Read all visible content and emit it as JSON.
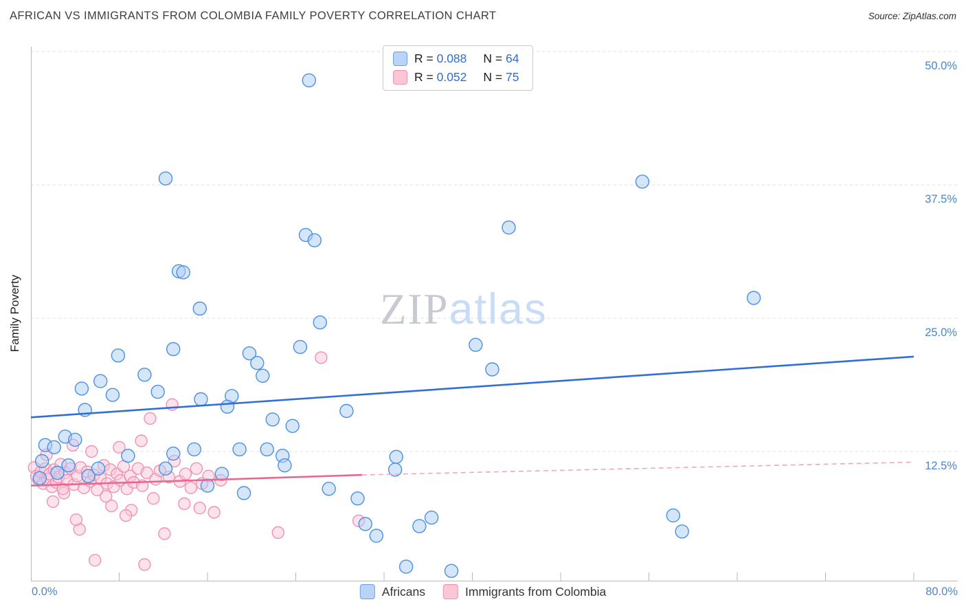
{
  "title": "AFRICAN VS IMMIGRANTS FROM COLOMBIA FAMILY POVERTY CORRELATION CHART",
  "source": "Source: ZipAtlas.com",
  "watermark": {
    "zip": "ZIP",
    "atlas": "atlas"
  },
  "legend_box": {
    "r_label": "R = ",
    "n_label": "N = ",
    "series": [
      {
        "r": "0.088",
        "n": "64"
      },
      {
        "r": "0.052",
        "n": "75"
      }
    ]
  },
  "bottom_legend": [
    {
      "label": "Africans"
    },
    {
      "label": "Immigrants from Colombia"
    }
  ],
  "axes": {
    "y_label": "Family Poverty",
    "y_ticks": [
      "50.0%",
      "37.5%",
      "25.0%",
      "12.5%"
    ],
    "x_min_label": "0.0%",
    "x_max_label": "80.0%"
  },
  "colors": {
    "accent_blue_text": "#4a86c8",
    "legend_value_blue": "#2b6fd4",
    "africans_stroke": "#4a90e2",
    "africans_fill": "#aecdf5",
    "colombia_stroke": "#f191b2",
    "colombia_fill": "#f9c6d7",
    "trend_blue": "#2f6fd6",
    "trend_pink": "#e9688f",
    "trend_pink_dashed": "#f0a6bb"
  },
  "chart_data": {
    "type": "scatter",
    "title": "AFRICAN VS IMMIGRANTS FROM COLOMBIA FAMILY POVERTY CORRELATION CHART",
    "xlabel": "",
    "ylabel": "Family Poverty",
    "xlim": [
      0,
      80
    ],
    "ylim": [
      0,
      52
    ],
    "x_unit": "%",
    "y_unit": "%",
    "gridlines": {
      "y_values": [
        12.5,
        25,
        37.5,
        50
      ],
      "style": "dashed"
    },
    "legend_position": "bottom-center",
    "series": [
      {
        "name": "Africans",
        "R": 0.088,
        "N": 64,
        "color": "#4a90e2",
        "fill": "#aecdf5",
        "points": [
          [
            25.2,
            47.3
          ],
          [
            12.2,
            38.1
          ],
          [
            55.4,
            37.8
          ],
          [
            43.3,
            33.5
          ],
          [
            24.9,
            32.8
          ],
          [
            25.7,
            32.3
          ],
          [
            13.4,
            29.4
          ],
          [
            13.8,
            29.3
          ],
          [
            65.5,
            26.9
          ],
          [
            15.3,
            25.9
          ],
          [
            26.2,
            24.6
          ],
          [
            40.3,
            22.5
          ],
          [
            24.4,
            22.3
          ],
          [
            12.9,
            22.1
          ],
          [
            7.9,
            21.5
          ],
          [
            19.8,
            21.7
          ],
          [
            20.5,
            20.8
          ],
          [
            41.8,
            20.2
          ],
          [
            10.3,
            19.7
          ],
          [
            21.0,
            19.6
          ],
          [
            6.3,
            19.1
          ],
          [
            4.6,
            18.4
          ],
          [
            11.5,
            18.1
          ],
          [
            7.4,
            17.8
          ],
          [
            18.2,
            17.7
          ],
          [
            15.4,
            17.4
          ],
          [
            17.8,
            16.7
          ],
          [
            4.9,
            16.4
          ],
          [
            28.6,
            16.3
          ],
          [
            21.9,
            15.5
          ],
          [
            23.7,
            14.9
          ],
          [
            3.1,
            13.9
          ],
          [
            4.0,
            13.6
          ],
          [
            1.3,
            13.1
          ],
          [
            2.1,
            12.9
          ],
          [
            14.8,
            12.7
          ],
          [
            18.9,
            12.7
          ],
          [
            21.4,
            12.7
          ],
          [
            12.9,
            12.3
          ],
          [
            22.8,
            12.1
          ],
          [
            8.8,
            12.1
          ],
          [
            33.1,
            12.0
          ],
          [
            23.0,
            11.2
          ],
          [
            1.0,
            11.6
          ],
          [
            3.4,
            11.2
          ],
          [
            6.1,
            10.9
          ],
          [
            12.2,
            10.9
          ],
          [
            17.3,
            10.4
          ],
          [
            2.4,
            10.5
          ],
          [
            5.2,
            10.2
          ],
          [
            0.8,
            10.0
          ],
          [
            16.0,
            9.3
          ],
          [
            19.3,
            8.6
          ],
          [
            29.6,
            8.1
          ],
          [
            27.0,
            9.0
          ],
          [
            30.3,
            5.7
          ],
          [
            31.3,
            4.6
          ],
          [
            35.2,
            5.5
          ],
          [
            34.0,
            1.7
          ],
          [
            38.1,
            1.3
          ],
          [
            58.2,
            6.5
          ],
          [
            59.0,
            5.0
          ],
          [
            33.0,
            10.8
          ],
          [
            36.3,
            6.3
          ]
        ]
      },
      {
        "name": "Immigrants from Colombia",
        "R": 0.052,
        "N": 75,
        "color": "#f191b2",
        "fill": "#f9c6d7",
        "points": [
          [
            26.3,
            21.3
          ],
          [
            12.8,
            16.9
          ],
          [
            10.8,
            15.6
          ],
          [
            16.6,
            6.8
          ],
          [
            22.4,
            4.9
          ],
          [
            29.7,
            6.0
          ],
          [
            5.8,
            2.3
          ],
          [
            10.3,
            1.9
          ],
          [
            4.4,
            5.2
          ],
          [
            12.1,
            4.8
          ],
          [
            10.0,
            13.5
          ],
          [
            8.0,
            12.9
          ],
          [
            5.5,
            12.5
          ],
          [
            3.8,
            13.1
          ],
          [
            1.4,
            12.2
          ],
          [
            7.3,
            7.4
          ],
          [
            4.1,
            6.1
          ],
          [
            9.1,
            7.0
          ],
          [
            2.0,
            7.8
          ],
          [
            13.9,
            7.6
          ],
          [
            6.8,
            8.3
          ],
          [
            3.0,
            8.6
          ],
          [
            11.1,
            8.1
          ],
          [
            8.6,
            6.5
          ],
          [
            15.3,
            7.2
          ],
          [
            0.3,
            11.0
          ],
          [
            0.5,
            10.2
          ],
          [
            0.7,
            9.8
          ],
          [
            0.9,
            10.6
          ],
          [
            1.1,
            9.5
          ],
          [
            1.3,
            10.9
          ],
          [
            1.5,
            9.9
          ],
          [
            1.7,
            10.4
          ],
          [
            1.9,
            9.2
          ],
          [
            2.1,
            10.8
          ],
          [
            2.3,
            9.6
          ],
          [
            2.5,
            10.1
          ],
          [
            2.7,
            11.3
          ],
          [
            2.9,
            9.0
          ],
          [
            3.1,
            10.5
          ],
          [
            3.3,
            9.8
          ],
          [
            3.6,
            10.9
          ],
          [
            3.9,
            9.4
          ],
          [
            4.2,
            10.2
          ],
          [
            4.5,
            11.0
          ],
          [
            4.8,
            9.1
          ],
          [
            5.1,
            10.6
          ],
          [
            5.4,
            9.7
          ],
          [
            5.7,
            10.3
          ],
          [
            6.0,
            8.9
          ],
          [
            6.3,
            10.0
          ],
          [
            6.6,
            11.2
          ],
          [
            6.9,
            9.5
          ],
          [
            7.2,
            10.8
          ],
          [
            7.5,
            9.2
          ],
          [
            7.8,
            10.4
          ],
          [
            8.1,
            9.8
          ],
          [
            8.4,
            11.1
          ],
          [
            8.7,
            9.0
          ],
          [
            9.0,
            10.2
          ],
          [
            9.3,
            9.6
          ],
          [
            9.7,
            10.9
          ],
          [
            10.1,
            9.3
          ],
          [
            10.5,
            10.5
          ],
          [
            11.3,
            9.9
          ],
          [
            11.7,
            10.7
          ],
          [
            12.5,
            10.1
          ],
          [
            13.0,
            11.6
          ],
          [
            13.5,
            9.7
          ],
          [
            14.0,
            10.4
          ],
          [
            14.5,
            9.1
          ],
          [
            15.0,
            10.9
          ],
          [
            15.5,
            9.5
          ],
          [
            16.1,
            10.2
          ],
          [
            17.2,
            9.8
          ]
        ]
      }
    ],
    "trend_lines": [
      {
        "series": "Africans",
        "style": "solid",
        "x1": 0,
        "y1": 15.7,
        "x2": 80,
        "y2": 21.4,
        "color": "#2f6fd6"
      },
      {
        "series": "Immigrants from Colombia",
        "style": "solid",
        "x1": 0,
        "y1": 9.3,
        "x2": 30,
        "y2": 10.3,
        "color": "#e9688f"
      },
      {
        "series": "Immigrants from Colombia",
        "style": "dashed",
        "x1": 30,
        "y1": 10.3,
        "x2": 80,
        "y2": 11.5,
        "color": "#f0a6bb"
      }
    ]
  }
}
